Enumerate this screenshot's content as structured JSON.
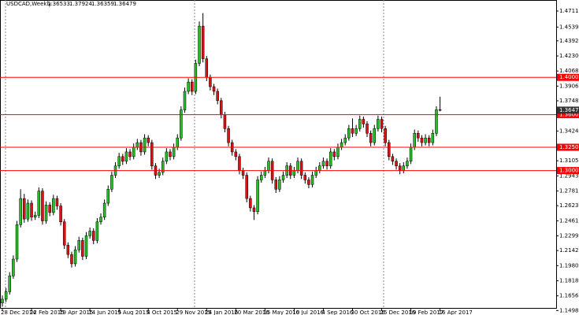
{
  "chart_data": {
    "type": "candlestick",
    "title": "USDCAD,Weekly",
    "up_color": "#22c022",
    "down_color": "#e01010",
    "wick_color": "#000000",
    "level_color": "#ff0000",
    "current_color": "#333333",
    "ylim": [
      1.1518,
      1.483
    ],
    "yticks": [
      {
        "value": 1.47115,
        "label": "1.47115"
      },
      {
        "value": 1.45395,
        "label": "1.45395"
      },
      {
        "value": 1.4392,
        "label": "1.43920"
      },
      {
        "value": 1.423,
        "label": "1.42300"
      },
      {
        "value": 1.4068,
        "label": "1.40680"
      },
      {
        "value": 1.3906,
        "label": "1.39060"
      },
      {
        "value": 1.37485,
        "label": "1.37485"
      },
      {
        "value": 1.34245,
        "label": "1.34245"
      },
      {
        "value": 1.3105,
        "label": "1.31050"
      },
      {
        "value": 1.2943,
        "label": "1.29430"
      },
      {
        "value": 1.2781,
        "label": "1.27810"
      },
      {
        "value": 1.26235,
        "label": "1.26235"
      },
      {
        "value": 1.24615,
        "label": "1.24615"
      },
      {
        "value": 1.22995,
        "label": "1.22995"
      },
      {
        "value": 1.2142,
        "label": "1.21420"
      },
      {
        "value": 1.198,
        "label": "1.19800"
      },
      {
        "value": 1.1818,
        "label": "1.18180"
      },
      {
        "value": 1.1656,
        "label": "1.16560"
      },
      {
        "value": 1.14985,
        "label": "1.14985"
      }
    ],
    "levels": [
      {
        "value": 1.4,
        "label": "1.40000"
      },
      {
        "value": 1.36,
        "label": "1.36000"
      },
      {
        "value": 1.325,
        "label": "1.32500"
      },
      {
        "value": 1.3,
        "label": "1.30000"
      }
    ],
    "categories": [
      "28 Dec 2014",
      null,
      null,
      null,
      null,
      null,
      null,
      null,
      "22 Feb 2015",
      null,
      null,
      null,
      null,
      null,
      null,
      null,
      "19 Apr 2015",
      null,
      null,
      null,
      null,
      null,
      null,
      null,
      "14 Jun 2015",
      null,
      null,
      null,
      null,
      null,
      null,
      null,
      "9 Aug 2015",
      null,
      null,
      null,
      null,
      null,
      null,
      null,
      "4 Oct 2015",
      null,
      null,
      null,
      null,
      null,
      null,
      null,
      "29 Nov 2015",
      null,
      null,
      null,
      null,
      null,
      null,
      null,
      "24 Jan 2016",
      null,
      null,
      null,
      null,
      null,
      null,
      null,
      "20 Mar 2016",
      null,
      null,
      null,
      null,
      null,
      null,
      null,
      "15 May 2016",
      null,
      null,
      null,
      null,
      null,
      null,
      null,
      "10 Jul 2016",
      null,
      null,
      null,
      null,
      null,
      null,
      null,
      "4 Sep 2016",
      null,
      null,
      null,
      null,
      null,
      null,
      null,
      "30 Oct 2016",
      null,
      null,
      null,
      null,
      null,
      null,
      null,
      "25 Dec 2016",
      null,
      null,
      null,
      null,
      null,
      null,
      null,
      "19 Feb 2017",
      null,
      null,
      null,
      null,
      null,
      null,
      null,
      "16 Apr 2017"
    ],
    "ohlc": [
      [
        1.158,
        1.166,
        1.154,
        1.162
      ],
      [
        1.162,
        1.174,
        1.159,
        1.17
      ],
      [
        1.17,
        1.191,
        1.167,
        1.187
      ],
      [
        1.187,
        1.209,
        1.184,
        1.205
      ],
      [
        1.205,
        1.246,
        1.202,
        1.242
      ],
      [
        1.242,
        1.28,
        1.239,
        1.27
      ],
      [
        1.27,
        1.275,
        1.244,
        1.248
      ],
      [
        1.248,
        1.269,
        1.245,
        1.265
      ],
      [
        1.265,
        1.268,
        1.246,
        1.25
      ],
      [
        1.25,
        1.256,
        1.247,
        1.252
      ],
      [
        1.252,
        1.282,
        1.249,
        1.278
      ],
      [
        1.278,
        1.281,
        1.242,
        1.246
      ],
      [
        1.246,
        1.267,
        1.243,
        1.263
      ],
      [
        1.263,
        1.266,
        1.251,
        1.255
      ],
      [
        1.255,
        1.274,
        1.252,
        1.27
      ],
      [
        1.27,
        1.273,
        1.258,
        1.262
      ],
      [
        1.262,
        1.265,
        1.241,
        1.245
      ],
      [
        1.245,
        1.248,
        1.216,
        1.22
      ],
      [
        1.22,
        1.223,
        1.206,
        1.21
      ],
      [
        1.21,
        1.213,
        1.196,
        1.2
      ],
      [
        1.2,
        1.219,
        1.197,
        1.215
      ],
      [
        1.215,
        1.229,
        1.212,
        1.225
      ],
      [
        1.225,
        1.228,
        1.204,
        1.208
      ],
      [
        1.208,
        1.234,
        1.205,
        1.23
      ],
      [
        1.23,
        1.239,
        1.227,
        1.235
      ],
      [
        1.235,
        1.238,
        1.221,
        1.225
      ],
      [
        1.225,
        1.249,
        1.222,
        1.245
      ],
      [
        1.245,
        1.254,
        1.242,
        1.25
      ],
      [
        1.25,
        1.269,
        1.247,
        1.265
      ],
      [
        1.265,
        1.284,
        1.262,
        1.28
      ],
      [
        1.28,
        1.299,
        1.277,
        1.295
      ],
      [
        1.295,
        1.309,
        1.292,
        1.305
      ],
      [
        1.305,
        1.319,
        1.302,
        1.315
      ],
      [
        1.315,
        1.318,
        1.306,
        1.31
      ],
      [
        1.31,
        1.324,
        1.307,
        1.32
      ],
      [
        1.32,
        1.323,
        1.311,
        1.315
      ],
      [
        1.315,
        1.329,
        1.312,
        1.325
      ],
      [
        1.325,
        1.334,
        1.322,
        1.33
      ],
      [
        1.33,
        1.333,
        1.316,
        1.32
      ],
      [
        1.32,
        1.339,
        1.317,
        1.335
      ],
      [
        1.335,
        1.338,
        1.326,
        1.33
      ],
      [
        1.33,
        1.333,
        1.301,
        1.305
      ],
      [
        1.305,
        1.308,
        1.291,
        1.295
      ],
      [
        1.295,
        1.302,
        1.292,
        1.298
      ],
      [
        1.298,
        1.314,
        1.295,
        1.31
      ],
      [
        1.31,
        1.324,
        1.307,
        1.32
      ],
      [
        1.32,
        1.323,
        1.311,
        1.315
      ],
      [
        1.315,
        1.329,
        1.312,
        1.325
      ],
      [
        1.325,
        1.339,
        1.322,
        1.335
      ],
      [
        1.335,
        1.369,
        1.332,
        1.365
      ],
      [
        1.365,
        1.389,
        1.362,
        1.385
      ],
      [
        1.385,
        1.399,
        1.382,
        1.395
      ],
      [
        1.395,
        1.398,
        1.381,
        1.385
      ],
      [
        1.385,
        1.419,
        1.382,
        1.415
      ],
      [
        1.415,
        1.46,
        1.412,
        1.455
      ],
      [
        1.455,
        1.469,
        1.416,
        1.42
      ],
      [
        1.42,
        1.423,
        1.396,
        1.4
      ],
      [
        1.4,
        1.403,
        1.386,
        1.39
      ],
      [
        1.39,
        1.393,
        1.381,
        1.385
      ],
      [
        1.385,
        1.388,
        1.371,
        1.375
      ],
      [
        1.375,
        1.378,
        1.356,
        1.36
      ],
      [
        1.36,
        1.363,
        1.341,
        1.345
      ],
      [
        1.345,
        1.348,
        1.326,
        1.33
      ],
      [
        1.33,
        1.333,
        1.316,
        1.32
      ],
      [
        1.32,
        1.323,
        1.311,
        1.315
      ],
      [
        1.315,
        1.318,
        1.296,
        1.3
      ],
      [
        1.3,
        1.303,
        1.291,
        1.295
      ],
      [
        1.295,
        1.298,
        1.266,
        1.27
      ],
      [
        1.27,
        1.273,
        1.256,
        1.26
      ],
      [
        1.26,
        1.263,
        1.247,
        1.256
      ],
      [
        1.256,
        1.294,
        1.253,
        1.29
      ],
      [
        1.29,
        1.299,
        1.287,
        1.295
      ],
      [
        1.295,
        1.304,
        1.292,
        1.3
      ],
      [
        1.3,
        1.314,
        1.297,
        1.31
      ],
      [
        1.31,
        1.313,
        1.286,
        1.29
      ],
      [
        1.29,
        1.293,
        1.276,
        1.28
      ],
      [
        1.28,
        1.294,
        1.277,
        1.29
      ],
      [
        1.29,
        1.299,
        1.287,
        1.295
      ],
      [
        1.295,
        1.309,
        1.292,
        1.305
      ],
      [
        1.305,
        1.308,
        1.291,
        1.295
      ],
      [
        1.295,
        1.304,
        1.292,
        1.3
      ],
      [
        1.3,
        1.314,
        1.297,
        1.31
      ],
      [
        1.31,
        1.313,
        1.291,
        1.295
      ],
      [
        1.295,
        1.298,
        1.286,
        1.29
      ],
      [
        1.29,
        1.293,
        1.281,
        1.285
      ],
      [
        1.285,
        1.299,
        1.282,
        1.295
      ],
      [
        1.295,
        1.304,
        1.292,
        1.3
      ],
      [
        1.3,
        1.309,
        1.297,
        1.305
      ],
      [
        1.305,
        1.314,
        1.302,
        1.31
      ],
      [
        1.31,
        1.313,
        1.301,
        1.305
      ],
      [
        1.305,
        1.324,
        1.302,
        1.32
      ],
      [
        1.32,
        1.323,
        1.311,
        1.315
      ],
      [
        1.315,
        1.329,
        1.312,
        1.325
      ],
      [
        1.325,
        1.334,
        1.322,
        1.33
      ],
      [
        1.33,
        1.339,
        1.327,
        1.335
      ],
      [
        1.335,
        1.349,
        1.332,
        1.345
      ],
      [
        1.345,
        1.356,
        1.336,
        1.34
      ],
      [
        1.34,
        1.349,
        1.337,
        1.345
      ],
      [
        1.345,
        1.359,
        1.342,
        1.355
      ],
      [
        1.355,
        1.358,
        1.346,
        1.35
      ],
      [
        1.35,
        1.353,
        1.336,
        1.34
      ],
      [
        1.34,
        1.343,
        1.326,
        1.33
      ],
      [
        1.33,
        1.349,
        1.327,
        1.345
      ],
      [
        1.345,
        1.359,
        1.342,
        1.355
      ],
      [
        1.355,
        1.358,
        1.341,
        1.345
      ],
      [
        1.345,
        1.348,
        1.326,
        1.33
      ],
      [
        1.33,
        1.333,
        1.311,
        1.315
      ],
      [
        1.315,
        1.318,
        1.306,
        1.31
      ],
      [
        1.31,
        1.313,
        1.301,
        1.305
      ],
      [
        1.305,
        1.308,
        1.296,
        1.3
      ],
      [
        1.3,
        1.309,
        1.297,
        1.305
      ],
      [
        1.305,
        1.314,
        1.302,
        1.31
      ],
      [
        1.31,
        1.329,
        1.307,
        1.325
      ],
      [
        1.325,
        1.344,
        1.322,
        1.34
      ],
      [
        1.34,
        1.343,
        1.331,
        1.335
      ],
      [
        1.335,
        1.338,
        1.326,
        1.33
      ],
      [
        1.33,
        1.339,
        1.327,
        1.335
      ],
      [
        1.335,
        1.338,
        1.326,
        1.33
      ],
      [
        1.33,
        1.344,
        1.327,
        1.34
      ],
      [
        1.34,
        1.369,
        1.337,
        1.3653
      ],
      [
        1.36533,
        1.37924,
        1.36359,
        1.36479
      ]
    ]
  }
}
